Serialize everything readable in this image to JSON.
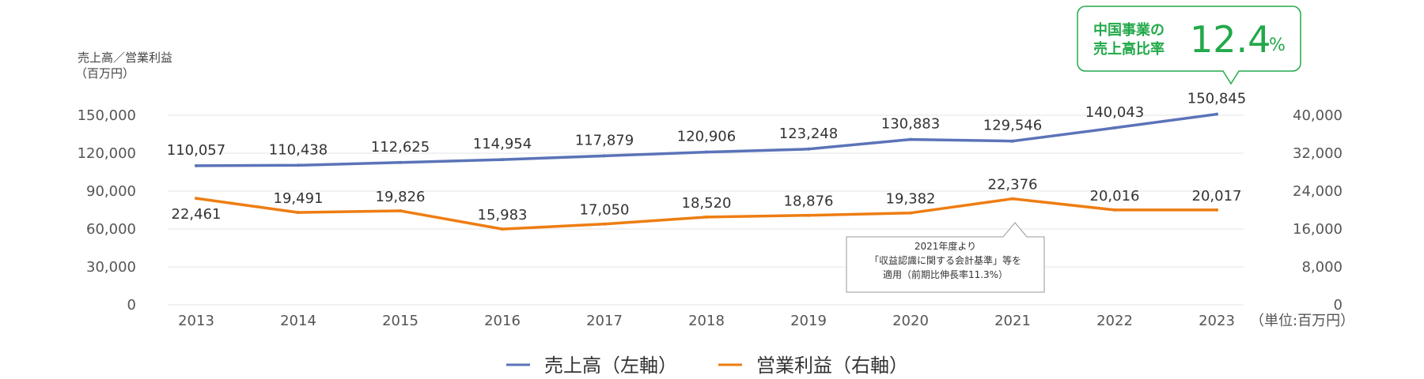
{
  "chart_data": {
    "type": "line",
    "categories": [
      "2013",
      "2014",
      "2015",
      "2016",
      "2017",
      "2018",
      "2019",
      "2020",
      "2021",
      "2022",
      "2023"
    ],
    "series": [
      {
        "name": "売上高（左軸）",
        "axis": "left",
        "color": "#5b73b8",
        "values": [
          110057,
          110438,
          112625,
          114954,
          117879,
          120906,
          123248,
          130883,
          129546,
          140043,
          150845
        ],
        "labels": [
          "110,057",
          "110,438",
          "112,625",
          "114,954",
          "117,879",
          "120,906",
          "123,248",
          "130,883",
          "129,546",
          "140,043",
          "150,845"
        ]
      },
      {
        "name": "営業利益（右軸）",
        "axis": "right",
        "color": "#ee7d12",
        "values": [
          22461,
          19491,
          19826,
          15983,
          17050,
          18520,
          18876,
          19382,
          22376,
          20016,
          20017
        ],
        "labels": [
          "22,461",
          "19,491",
          "19,826",
          "15,983",
          "17,050",
          "18,520",
          "18,876",
          "19,382",
          "22,376",
          "20,016",
          "20,017"
        ]
      }
    ],
    "left_axis": {
      "title_line1": "売上高／営業利益",
      "title_line2": "（百万円）",
      "range": [
        0,
        150000
      ],
      "ticks": [
        "0",
        "30,000",
        "60,000",
        "90,000",
        "120,000",
        "150,000"
      ]
    },
    "right_axis": {
      "range": [
        0,
        40000
      ],
      "ticks": [
        "0",
        "8,000",
        "16,000",
        "24,000",
        "32,000",
        "40,000"
      ]
    },
    "unit_note": "（単位:百万円）",
    "grid": true,
    "legend_position": "bottom"
  },
  "annotation": {
    "lines": [
      "2021年度より",
      "「収益認識に関する会計基準」等を",
      "適用（前期比伸長率11.3%）"
    ]
  },
  "callout": {
    "line1": "中国事業の",
    "line2": "売上高比率",
    "value": "12.4",
    "unit": "%",
    "color": "#22a94a"
  }
}
